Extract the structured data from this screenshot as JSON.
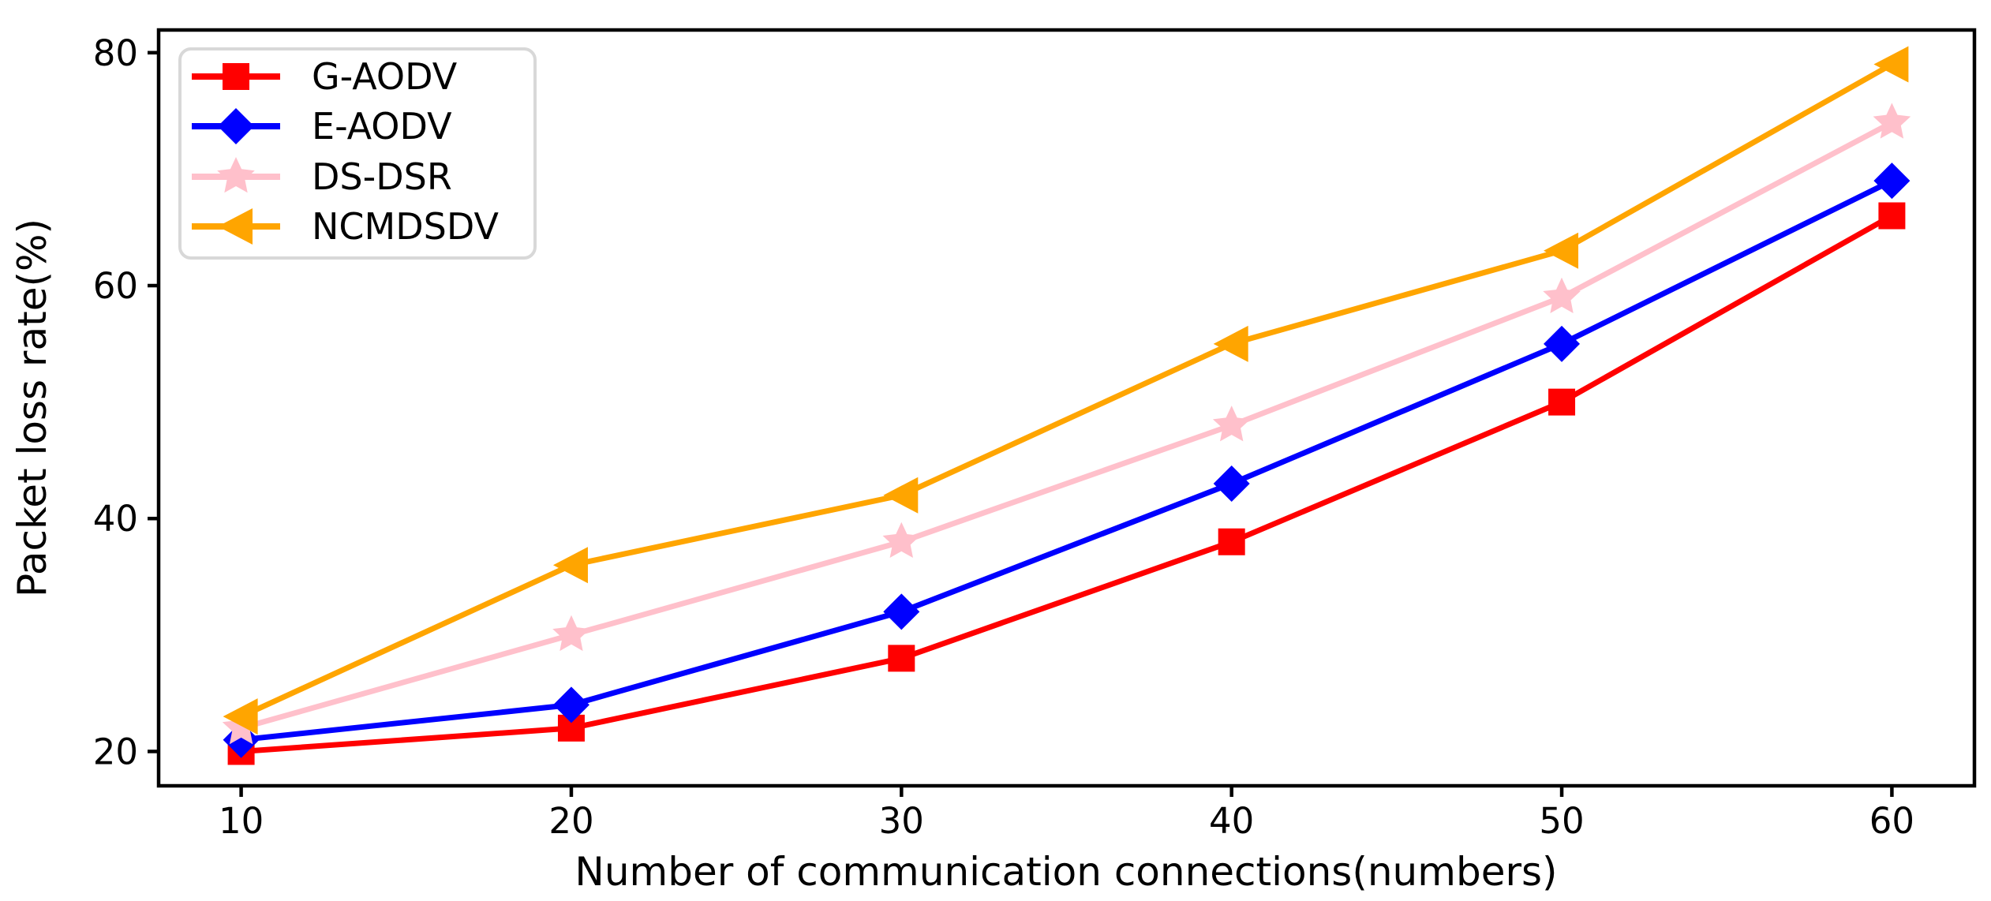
{
  "figure": {
    "background": "#ffffff",
    "frame_color": "#000000",
    "text_color": "#000000"
  },
  "chart_data": {
    "type": "line",
    "title": "",
    "xlabel": "Number of communication connections(numbers)",
    "ylabel": "Packet loss rate(%)",
    "x": [
      10,
      20,
      30,
      40,
      50,
      60
    ],
    "xticks": [
      10,
      20,
      30,
      40,
      50,
      60
    ],
    "yticks": [
      20,
      40,
      60,
      80
    ],
    "xlim": [
      7.5,
      62.5
    ],
    "ylim": [
      17.05,
      81.95
    ],
    "grid": false,
    "legend": {
      "position": "upper-left",
      "background": "#ffffff",
      "border_color": "#d8d8d8"
    },
    "series": [
      {
        "name": "G-AODV",
        "color": "#ff0000",
        "marker": "square",
        "values": [
          20,
          22,
          28,
          38,
          50,
          66
        ]
      },
      {
        "name": "E-AODV",
        "color": "#0000ff",
        "marker": "diamond",
        "values": [
          21,
          24,
          32,
          43,
          55,
          69
        ]
      },
      {
        "name": "DS-DSR",
        "color": "#ffc0cb",
        "marker": "star",
        "values": [
          22,
          30,
          38,
          48,
          59,
          74
        ]
      },
      {
        "name": "NCMDSDV",
        "color": "#ffa500",
        "marker": "triangle-left",
        "values": [
          23,
          36,
          42,
          55,
          63,
          79
        ]
      }
    ]
  }
}
